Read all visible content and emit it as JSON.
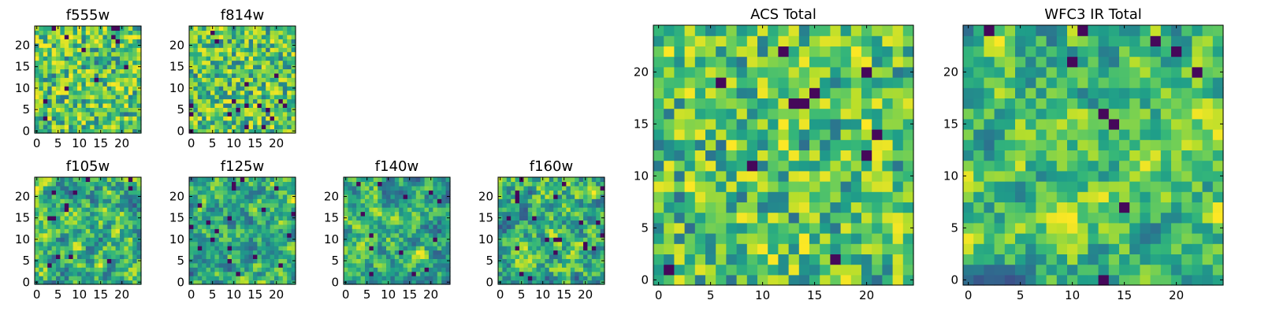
{
  "chart_data": [
    {
      "type": "heatmap",
      "title": "f555w",
      "xticks": [
        "0",
        "5",
        "10",
        "15",
        "20"
      ],
      "yticks": [
        "0",
        "5",
        "10",
        "15",
        "20"
      ],
      "nx": 25,
      "ny": 25,
      "xlim": [
        -0.5,
        24.5
      ],
      "ylim": [
        -0.5,
        24.5
      ],
      "colormap": "viridis",
      "texture": "noise",
      "seed": 11
    },
    {
      "type": "heatmap",
      "title": "f814w",
      "xticks": [
        "0",
        "5",
        "10",
        "15",
        "20"
      ],
      "yticks": [
        "0",
        "5",
        "10",
        "15",
        "20"
      ],
      "nx": 25,
      "ny": 25,
      "xlim": [
        -0.5,
        24.5
      ],
      "ylim": [
        -0.5,
        24.5
      ],
      "colormap": "viridis",
      "texture": "noise",
      "seed": 23
    },
    {
      "type": "heatmap",
      "title": "f105w",
      "xticks": [
        "0",
        "5",
        "10",
        "15",
        "20"
      ],
      "yticks": [
        "0",
        "5",
        "10",
        "15",
        "20"
      ],
      "nx": 25,
      "ny": 25,
      "xlim": [
        -0.5,
        24.5
      ],
      "ylim": [
        -0.5,
        24.5
      ],
      "colormap": "viridis",
      "texture": "smooth",
      "seed": 37
    },
    {
      "type": "heatmap",
      "title": "f125w",
      "xticks": [
        "0",
        "5",
        "10",
        "15",
        "20"
      ],
      "yticks": [
        "0",
        "5",
        "10",
        "15",
        "20"
      ],
      "nx": 25,
      "ny": 25,
      "xlim": [
        -0.5,
        24.5
      ],
      "ylim": [
        -0.5,
        24.5
      ],
      "colormap": "viridis",
      "texture": "smooth",
      "seed": 41
    },
    {
      "type": "heatmap",
      "title": "f140w",
      "xticks": [
        "0",
        "5",
        "10",
        "15",
        "20"
      ],
      "yticks": [
        "0",
        "5",
        "10",
        "15",
        "20"
      ],
      "nx": 25,
      "ny": 25,
      "xlim": [
        -0.5,
        24.5
      ],
      "ylim": [
        -0.5,
        24.5
      ],
      "colormap": "viridis",
      "texture": "smooth",
      "seed": 53
    },
    {
      "type": "heatmap",
      "title": "f160w",
      "xticks": [
        "0",
        "5",
        "10",
        "15",
        "20"
      ],
      "yticks": [
        "0",
        "5",
        "10",
        "15",
        "20"
      ],
      "nx": 25,
      "ny": 25,
      "xlim": [
        -0.5,
        24.5
      ],
      "ylim": [
        -0.5,
        24.5
      ],
      "colormap": "viridis",
      "texture": "smooth",
      "seed": 67
    },
    {
      "type": "heatmap",
      "title": "ACS Total",
      "xticks": [
        "0",
        "5",
        "10",
        "15",
        "20"
      ],
      "yticks": [
        "0",
        "5",
        "10",
        "15",
        "20"
      ],
      "nx": 25,
      "ny": 25,
      "xlim": [
        -0.5,
        24.5
      ],
      "ylim": [
        -0.5,
        24.5
      ],
      "colormap": "viridis",
      "texture": "noise",
      "seed": 79
    },
    {
      "type": "heatmap",
      "title": "WFC3 IR Total",
      "xticks": [
        "0",
        "5",
        "10",
        "15",
        "20"
      ],
      "yticks": [
        "0",
        "5",
        "10",
        "15",
        "20"
      ],
      "nx": 25,
      "ny": 25,
      "xlim": [
        -0.5,
        24.5
      ],
      "ylim": [
        -0.5,
        24.5
      ],
      "colormap": "viridis",
      "texture": "smooth",
      "seed": 97
    }
  ]
}
